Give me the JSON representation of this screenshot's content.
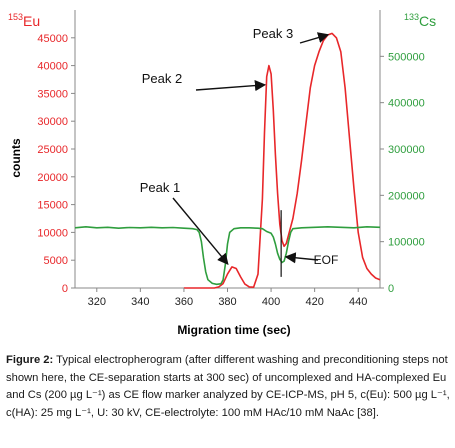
{
  "chart_data": {
    "type": "line",
    "xlabel": "Migration time (sec)",
    "ylabel": "counts",
    "xlim": [
      310,
      450
    ],
    "ylim_left": [
      0,
      50000
    ],
    "ylim_right": [
      0,
      600000
    ],
    "x_ticks": [
      "320",
      "340",
      "360",
      "380",
      "400",
      "420",
      "440"
    ],
    "y_ticks_left": [
      "0",
      "5000",
      "10000",
      "15000",
      "20000",
      "25000",
      "30000",
      "35000",
      "40000",
      "45000"
    ],
    "y_ticks_right": [
      "0",
      "100000",
      "200000",
      "300000",
      "400000",
      "500000"
    ],
    "grid": false,
    "series": [
      {
        "name": "153Eu",
        "axis": "left",
        "color": "#e8272a",
        "points": [
          [
            360,
            0
          ],
          [
            365,
            0
          ],
          [
            370,
            0
          ],
          [
            374,
            0
          ],
          [
            376,
            200
          ],
          [
            378,
            800
          ],
          [
            380,
            2500
          ],
          [
            382,
            3800
          ],
          [
            384,
            3500
          ],
          [
            386,
            2000
          ],
          [
            388,
            700
          ],
          [
            390,
            200
          ],
          [
            392,
            150
          ],
          [
            394,
            2500
          ],
          [
            396,
            16000
          ],
          [
            397,
            28000
          ],
          [
            398,
            38000
          ],
          [
            399,
            40000
          ],
          [
            400,
            38500
          ],
          [
            401,
            32000
          ],
          [
            402,
            24000
          ],
          [
            403,
            17000
          ],
          [
            404,
            11500
          ],
          [
            405,
            8500
          ],
          [
            406,
            7500
          ],
          [
            407,
            8000
          ],
          [
            408,
            9500
          ],
          [
            410,
            12500
          ],
          [
            412,
            17000
          ],
          [
            414,
            23000
          ],
          [
            416,
            29500
          ],
          [
            418,
            36000
          ],
          [
            420,
            40000
          ],
          [
            422,
            42500
          ],
          [
            424,
            44500
          ],
          [
            426,
            45500
          ],
          [
            428,
            45800
          ],
          [
            430,
            45000
          ],
          [
            432,
            42500
          ],
          [
            434,
            36000
          ],
          [
            436,
            27000
          ],
          [
            438,
            18000
          ],
          [
            440,
            10000
          ],
          [
            442,
            5500
          ],
          [
            444,
            3500
          ],
          [
            446,
            2500
          ],
          [
            448,
            1800
          ],
          [
            450,
            1500
          ]
        ]
      },
      {
        "name": "133Cs",
        "axis": "right",
        "color": "#2f9e3e",
        "points": [
          [
            310,
            130000
          ],
          [
            315,
            132000
          ],
          [
            320,
            130000
          ],
          [
            325,
            131000
          ],
          [
            330,
            129000
          ],
          [
            335,
            130500
          ],
          [
            340,
            130000
          ],
          [
            345,
            131000
          ],
          [
            350,
            130000
          ],
          [
            355,
            130500
          ],
          [
            360,
            129000
          ],
          [
            364,
            128000
          ],
          [
            366,
            126000
          ],
          [
            367,
            120000
          ],
          [
            368,
            100000
          ],
          [
            369,
            65000
          ],
          [
            370,
            35000
          ],
          [
            371,
            18000
          ],
          [
            373,
            10000
          ],
          [
            375,
            8000
          ],
          [
            377,
            9000
          ],
          [
            378,
            18000
          ],
          [
            379,
            50000
          ],
          [
            380,
            95000
          ],
          [
            381,
            120000
          ],
          [
            383,
            128000
          ],
          [
            386,
            130000
          ],
          [
            390,
            130000
          ],
          [
            394,
            129000
          ],
          [
            396,
            128000
          ],
          [
            398,
            122000
          ],
          [
            400,
            118000
          ],
          [
            401,
            110000
          ],
          [
            402,
            95000
          ],
          [
            403,
            75000
          ],
          [
            404,
            62000
          ],
          [
            405,
            55000
          ],
          [
            406,
            58000
          ],
          [
            407,
            75000
          ],
          [
            408,
            100000
          ],
          [
            409,
            120000
          ],
          [
            410,
            128000
          ],
          [
            414,
            130000
          ],
          [
            420,
            131000
          ],
          [
            426,
            132000
          ],
          [
            432,
            131000
          ],
          [
            438,
            130000
          ],
          [
            444,
            132000
          ],
          [
            450,
            131000
          ]
        ]
      }
    ],
    "annotations": [
      {
        "text": "Peak 1",
        "points_to": [
          381,
          3800
        ]
      },
      {
        "text": "Peak 2",
        "points_to": [
          398,
          36000
        ]
      },
      {
        "text": "Peak 3",
        "points_to": [
          427,
          45000
        ]
      },
      {
        "text": "EOF",
        "points_to": [
          405,
          5600
        ]
      }
    ],
    "eof_x": 406,
    "left_axis_title": {
      "sup": "153",
      "main": "Eu"
    },
    "right_axis_title": {
      "sup": "133",
      "main": "Cs"
    },
    "colors": {
      "left_axis": "#e8272a",
      "right_axis": "#2f9e3e",
      "annotation": "#111111"
    }
  },
  "caption": {
    "label": "Figure 2:",
    "text": " Typical electropherogram (after different washing and preconditioning steps not shown here, the CE-separation starts at 300 sec) of uncomplexed and HA-complexed Eu and Cs (200 µg L⁻¹) as CE flow marker analyzed by CE-ICP-MS, pH 5, c(Eu): 500 µg L⁻¹, c(HA): 25 mg L⁻¹, U: 30 kV, CE-electrolyte: 100 mM HAc/10 mM NaAc [38]."
  }
}
